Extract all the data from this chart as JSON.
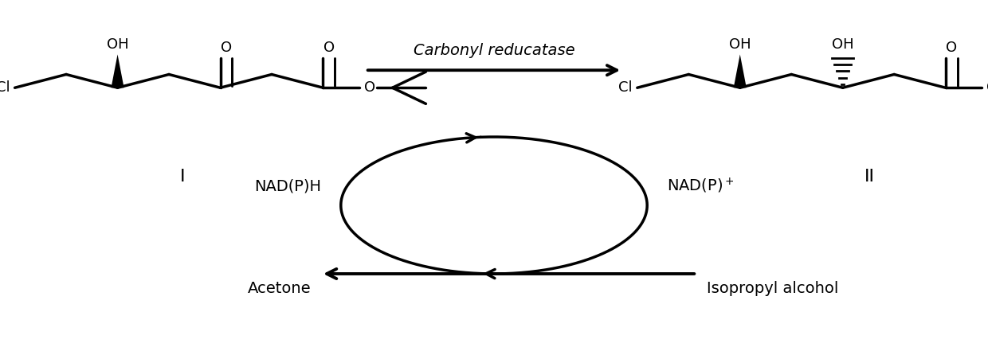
{
  "fig_width": 12.4,
  "fig_height": 4.41,
  "dpi": 100,
  "bg_color": "#ffffff",
  "arrow_color": "#000000",
  "text_color": "#000000",
  "enzyme_label": "Carbonyl reducatase",
  "compound_I_label": "I",
  "compound_II_label": "II",
  "nadph_label": "NAD(P)H",
  "nadp_label": "NAD(P)⁺",
  "acetone_label": "Acetone",
  "isopropanol_label": "Isopropyl alcohol"
}
